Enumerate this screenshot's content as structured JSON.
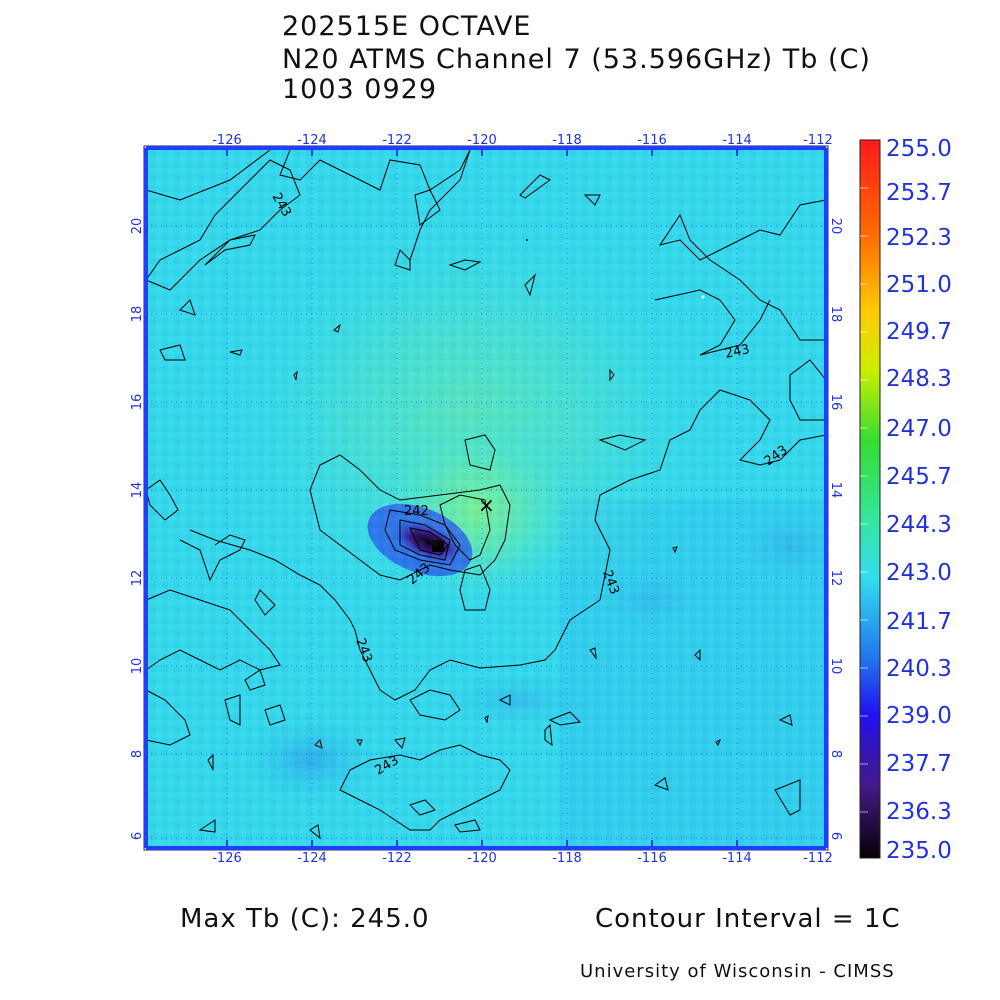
{
  "header": {
    "line1": "202515E OCTAVE",
    "line2": "N20 ATMS Channel 7 (53.596GHz) Tb (C)",
    "line3": "1003 0929"
  },
  "map": {
    "lon_ticks": [
      "-126",
      "-124",
      "-122",
      "-120",
      "-118",
      "-116",
      "-114",
      "-112"
    ],
    "lat_ticks": [
      "20",
      "18",
      "16",
      "14",
      "12",
      "10",
      "8",
      "6"
    ],
    "contour_labels": [
      "243",
      "243",
      "243",
      "242",
      "243",
      "243",
      "243",
      "243"
    ],
    "center_marker": "×",
    "background_color": "#33ddee",
    "warm_core_color": "#66f0b0",
    "cold_spot_color": "#1a0a3a"
  },
  "colorbar": {
    "labels": [
      "255.0",
      "253.7",
      "252.3",
      "251.0",
      "249.7",
      "248.3",
      "247.0",
      "245.7",
      "244.3",
      "243.0",
      "241.7",
      "240.3",
      "239.0",
      "237.7",
      "236.3",
      "235.0"
    ],
    "label_color": "#2233dd"
  },
  "footer": {
    "max_tb": "Max Tb (C): 245.0",
    "contour_interval": "Contour Interval = 1C",
    "credit": "University of Wisconsin - CIMSS"
  }
}
